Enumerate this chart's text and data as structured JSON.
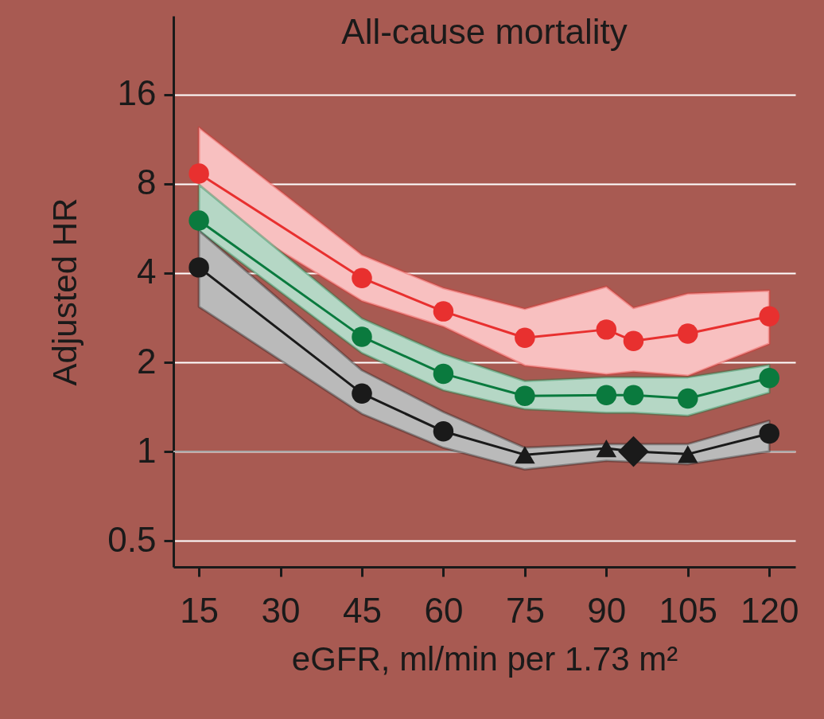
{
  "chart_data": {
    "type": "line",
    "title": "All-cause mortality",
    "xlabel": "eGFR, ml/min per 1.73 m²",
    "ylabel": "Adjusted HR",
    "x": [
      15,
      45,
      60,
      75,
      90,
      95,
      105,
      120
    ],
    "series": [
      {
        "type": "line",
        "color": "#e8302f",
        "marker": "circle",
        "line_style": "solid",
        "values": [
          8.67,
          3.85,
          2.97,
          2.42,
          2.58,
          2.36,
          2.5,
          2.86
        ],
        "lower": [
          7.0,
          3.22,
          2.64,
          1.95,
          1.82,
          1.86,
          1.8,
          2.31
        ],
        "upper": [
          12.4,
          4.61,
          3.56,
          3.03,
          3.6,
          3.05,
          3.41,
          3.49
        ]
      },
      {
        "type": "line",
        "color": "#0a7a3e",
        "marker": "circle",
        "line_style": "solid",
        "values": [
          6.02,
          2.44,
          1.83,
          1.54,
          1.55,
          1.55,
          1.51,
          1.77
        ],
        "lower": [
          5.56,
          2.15,
          1.61,
          1.39,
          1.35,
          1.35,
          1.32,
          1.58
        ],
        "upper": [
          7.95,
          2.81,
          2.13,
          1.73,
          1.78,
          1.78,
          1.78,
          1.96
        ]
      },
      {
        "type": "line",
        "color": "#1a1a1a",
        "marker": "none",
        "line_style": "solid",
        "values": [
          4.18,
          1.57,
          1.17,
          0.975,
          1.025,
          1.0,
          0.98,
          1.15
        ],
        "lower": [
          3.08,
          1.34,
          1.03,
          0.87,
          0.93,
          null,
          0.906,
          1.0
        ],
        "upper": [
          5.56,
          1.88,
          1.36,
          1.03,
          1.06,
          null,
          1.06,
          1.27
        ]
      },
      {
        "type": "scatter",
        "color": "#1a1a1a",
        "marker": "circle",
        "x": [
          15,
          45,
          60,
          120
        ],
        "values": [
          4.18,
          1.57,
          1.17,
          1.15
        ]
      },
      {
        "type": "scatter",
        "color": "#1a1a1a",
        "marker": "triangle",
        "x": [
          75,
          90,
          105
        ],
        "values": [
          0.975,
          1.025,
          0.98
        ]
      },
      {
        "type": "scatter",
        "color": "#1a1a1a",
        "marker": "diamond",
        "x": [
          95
        ],
        "values": [
          1.0
        ]
      }
    ],
    "log": "y",
    "xlim": [
      10.3,
      124.8
    ],
    "ylim": [
      0.408,
      29.5
    ],
    "xticks": [
      15,
      30,
      45,
      60,
      75,
      90,
      105,
      120
    ],
    "yticks": [
      0.5,
      1,
      2,
      4,
      8,
      16
    ],
    "grid": "y",
    "ref_lines": [
      {
        "axis": "y",
        "value": 1,
        "color": "#a8a8a8"
      }
    ]
  }
}
